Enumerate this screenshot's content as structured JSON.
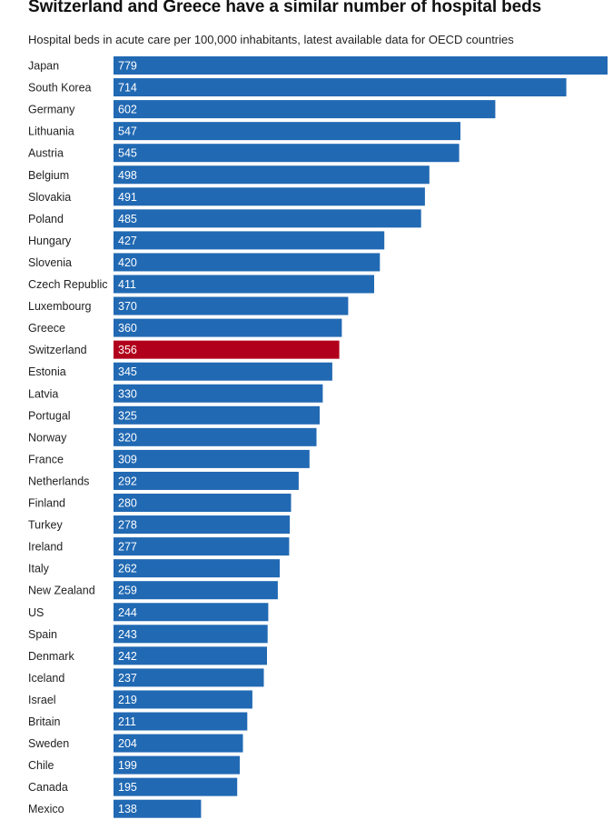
{
  "chart_data": {
    "type": "bar",
    "orientation": "horizontal",
    "title": "Switzerland and Greece have a similar number of hospital beds",
    "subtitle": "Hospital beds in acute care per 100,000 inhabitants, latest available data for OECD countries",
    "xlim": [
      0,
      779
    ],
    "grid": false,
    "categories": [
      "Japan",
      "South Korea",
      "Germany",
      "Lithuania",
      "Austria",
      "Belgium",
      "Slovakia",
      "Poland",
      "Hungary",
      "Slovenia",
      "Czech Republic",
      "Luxembourg",
      "Greece",
      "Switzerland",
      "Estonia",
      "Latvia",
      "Portugal",
      "Norway",
      "France",
      "Netherlands",
      "Finland",
      "Turkey",
      "Ireland",
      "Italy",
      "New Zealand",
      "US",
      "Spain",
      "Denmark",
      "Iceland",
      "Israel",
      "Britain",
      "Sweden",
      "Chile",
      "Canada",
      "Mexico"
    ],
    "values": [
      779,
      714,
      602,
      547,
      545,
      498,
      491,
      485,
      427,
      420,
      411,
      370,
      360,
      356,
      345,
      330,
      325,
      320,
      309,
      292,
      280,
      278,
      277,
      262,
      259,
      244,
      243,
      242,
      237,
      219,
      211,
      204,
      199,
      195,
      138
    ],
    "highlight": "Switzerland",
    "colors": {
      "bar": "#2169b3",
      "highlight": "#b1001c",
      "value_text": "#ffffff",
      "label_text": "#222222"
    }
  }
}
